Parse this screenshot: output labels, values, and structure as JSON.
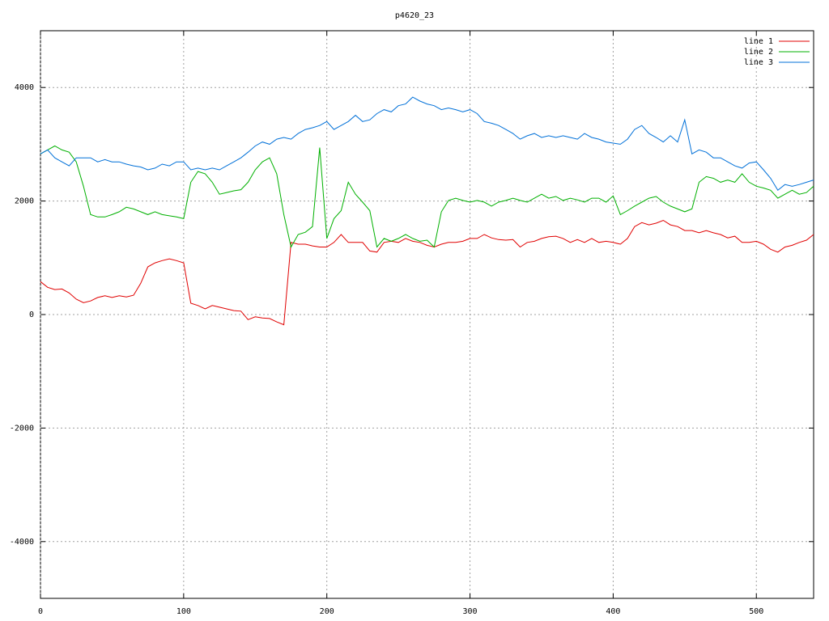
{
  "chart_data": {
    "type": "line",
    "title": "p4620_23",
    "x": [
      0,
      5,
      10,
      15,
      20,
      25,
      30,
      35,
      40,
      45,
      50,
      55,
      60,
      65,
      70,
      75,
      80,
      85,
      90,
      95,
      100,
      105,
      110,
      115,
      120,
      125,
      130,
      135,
      140,
      145,
      150,
      155,
      160,
      165,
      170,
      175,
      180,
      185,
      190,
      195,
      200,
      205,
      210,
      215,
      220,
      225,
      230,
      235,
      240,
      245,
      250,
      255,
      260,
      265,
      270,
      275,
      280,
      285,
      290,
      295,
      300,
      305,
      310,
      315,
      320,
      325,
      330,
      335,
      340,
      345,
      350,
      355,
      360,
      365,
      370,
      375,
      380,
      385,
      390,
      395,
      400,
      405,
      410,
      415,
      420,
      425,
      430,
      435,
      440,
      445,
      450,
      455,
      460,
      465,
      470,
      475,
      480,
      485,
      490,
      495,
      500,
      505,
      510,
      515,
      520,
      525,
      530,
      535,
      540
    ],
    "series": [
      {
        "name": "line 1",
        "color": "#e00000",
        "values": [
          580,
          480,
          440,
          450,
          380,
          270,
          210,
          240,
          300,
          330,
          300,
          330,
          310,
          340,
          550,
          840,
          910,
          950,
          980,
          950,
          910,
          200,
          160,
          100,
          160,
          130,
          100,
          70,
          60,
          -90,
          -40,
          -60,
          -70,
          -130,
          -180,
          1270,
          1240,
          1240,
          1210,
          1190,
          1190,
          1270,
          1410,
          1270,
          1270,
          1270,
          1120,
          1100,
          1270,
          1290,
          1270,
          1340,
          1290,
          1270,
          1220,
          1190,
          1240,
          1270,
          1270,
          1290,
          1340,
          1340,
          1410,
          1350,
          1320,
          1310,
          1320,
          1190,
          1270,
          1290,
          1340,
          1370,
          1380,
          1340,
          1270,
          1320,
          1270,
          1340,
          1270,
          1290,
          1270,
          1240,
          1340,
          1550,
          1620,
          1580,
          1610,
          1660,
          1580,
          1550,
          1480,
          1480,
          1440,
          1480,
          1440,
          1410,
          1350,
          1380,
          1270,
          1270,
          1290,
          1240,
          1150,
          1100,
          1190,
          1220,
          1270,
          1310,
          1410
        ]
      },
      {
        "name": "line 2",
        "color": "#00b000",
        "values": [
          2830,
          2900,
          2970,
          2900,
          2860,
          2690,
          2260,
          1760,
          1720,
          1720,
          1760,
          1810,
          1890,
          1860,
          1810,
          1760,
          1810,
          1760,
          1740,
          1720,
          1690,
          2330,
          2520,
          2480,
          2330,
          2120,
          2150,
          2180,
          2200,
          2330,
          2550,
          2690,
          2760,
          2480,
          1760,
          1190,
          1410,
          1450,
          1550,
          2940,
          1340,
          1690,
          1830,
          2330,
          2120,
          1980,
          1830,
          1190,
          1340,
          1290,
          1340,
          1410,
          1340,
          1290,
          1310,
          1190,
          1810,
          2010,
          2050,
          2010,
          1980,
          2010,
          1980,
          1910,
          1980,
          2010,
          2050,
          2010,
          1980,
          2050,
          2120,
          2050,
          2080,
          2010,
          2050,
          2020,
          1980,
          2050,
          2050,
          1980,
          2090,
          1760,
          1830,
          1910,
          1980,
          2050,
          2080,
          1980,
          1910,
          1860,
          1810,
          1860,
          2330,
          2430,
          2400,
          2330,
          2370,
          2330,
          2480,
          2330,
          2260,
          2230,
          2190,
          2050,
          2120,
          2190,
          2120,
          2150,
          2260
        ]
      },
      {
        "name": "line 3",
        "color": "#0070d8",
        "values": [
          2830,
          2900,
          2760,
          2690,
          2620,
          2760,
          2760,
          2760,
          2690,
          2730,
          2690,
          2690,
          2650,
          2620,
          2600,
          2550,
          2580,
          2650,
          2620,
          2690,
          2690,
          2550,
          2580,
          2550,
          2580,
          2550,
          2620,
          2690,
          2760,
          2860,
          2970,
          3040,
          3000,
          3090,
          3120,
          3090,
          3190,
          3260,
          3290,
          3330,
          3400,
          3260,
          3330,
          3400,
          3510,
          3400,
          3430,
          3540,
          3610,
          3570,
          3680,
          3710,
          3830,
          3760,
          3710,
          3680,
          3610,
          3640,
          3610,
          3570,
          3610,
          3540,
          3400,
          3370,
          3330,
          3260,
          3190,
          3090,
          3150,
          3190,
          3120,
          3150,
          3120,
          3150,
          3120,
          3090,
          3190,
          3120,
          3090,
          3040,
          3020,
          3000,
          3090,
          3260,
          3330,
          3190,
          3120,
          3040,
          3150,
          3040,
          3430,
          2830,
          2900,
          2860,
          2760,
          2760,
          2690,
          2620,
          2580,
          2670,
          2690,
          2550,
          2400,
          2190,
          2290,
          2260,
          2290,
          2330,
          2370
        ]
      }
    ],
    "xlim": [
      0,
      540
    ],
    "ylim": [
      -5000,
      5000
    ],
    "xticks": [
      0,
      100,
      200,
      300,
      400,
      500
    ],
    "yticks": [
      -4000,
      -2000,
      0,
      2000,
      4000
    ],
    "grid": true,
    "legend": "top-right"
  }
}
